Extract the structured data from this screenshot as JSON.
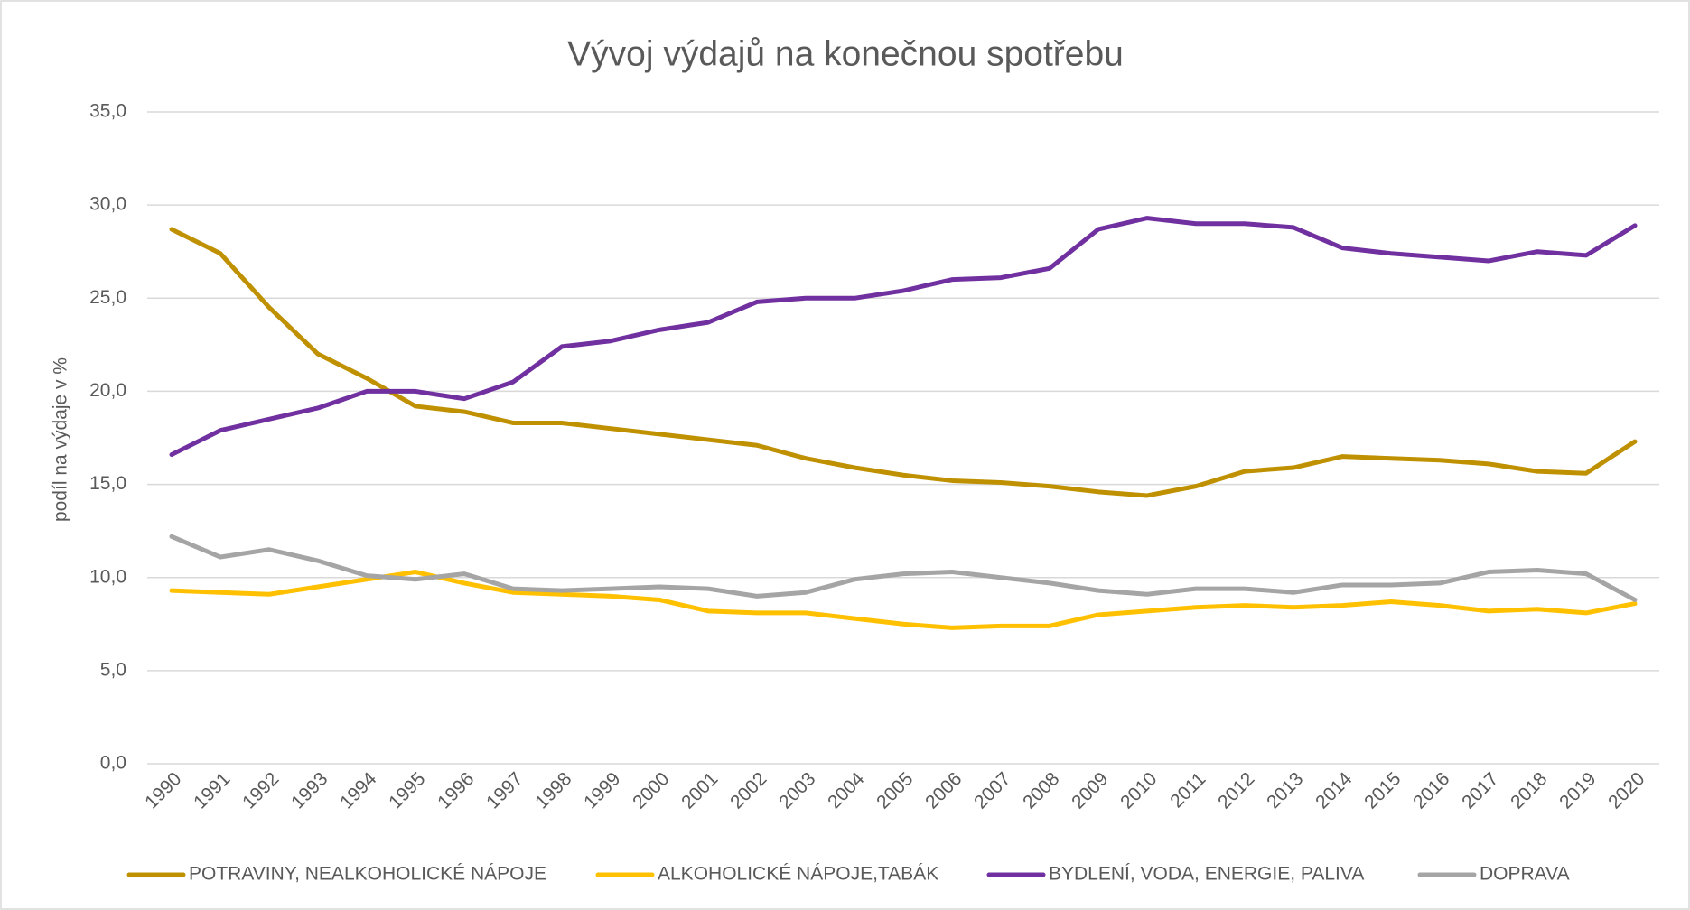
{
  "chart_data": {
    "type": "line",
    "title": "Vývoj výdajů na konečnou spotřebu",
    "y_label": "podíl na výdaje v %",
    "categories": [
      "1990",
      "1991",
      "1992",
      "1993",
      "1994",
      "1995",
      "1996",
      "1997",
      "1998",
      "1999",
      "2000",
      "2001",
      "2002",
      "2003",
      "2004",
      "2005",
      "2006",
      "2007",
      "2008",
      "2009",
      "2010",
      "2011",
      "2012",
      "2013",
      "2014",
      "2015",
      "2016",
      "2017",
      "2018",
      "2019",
      "2020"
    ],
    "series": [
      {
        "name": "POTRAVINY, NEALKOHOLICKÉ NÁPOJE",
        "color": "#bf9000",
        "values": [
          28.7,
          27.4,
          24.5,
          22.0,
          20.7,
          19.2,
          18.9,
          18.3,
          18.3,
          18.0,
          17.7,
          17.4,
          17.1,
          16.4,
          15.9,
          15.5,
          15.2,
          15.1,
          14.9,
          14.6,
          14.4,
          14.9,
          15.7,
          15.9,
          16.5,
          16.4,
          16.3,
          16.1,
          15.7,
          15.6,
          17.3
        ]
      },
      {
        "name": "ALKOHOLICKÉ NÁPOJE,TABÁK",
        "color": "#ffc000",
        "values": [
          9.3,
          9.2,
          9.1,
          9.5,
          9.9,
          10.3,
          9.7,
          9.2,
          9.1,
          9.0,
          8.8,
          8.2,
          8.1,
          8.1,
          7.8,
          7.5,
          7.3,
          7.4,
          7.4,
          8.0,
          8.2,
          8.4,
          8.5,
          8.4,
          8.5,
          8.7,
          8.5,
          8.2,
          8.3,
          8.1,
          8.6
        ]
      },
      {
        "name": "BYDLENÍ, VODA, ENERGIE, PALIVA",
        "color": "#7030a0",
        "values": [
          16.6,
          17.9,
          18.5,
          19.1,
          20.0,
          20.0,
          19.6,
          20.5,
          22.4,
          22.7,
          23.3,
          23.7,
          24.8,
          25.0,
          25.0,
          25.4,
          26.0,
          26.1,
          26.6,
          28.7,
          29.3,
          29.0,
          29.0,
          28.8,
          27.7,
          27.4,
          27.2,
          27.0,
          27.5,
          27.3,
          28.9
        ]
      },
      {
        "name": "DOPRAVA",
        "color": "#a5a5a5",
        "values": [
          12.2,
          11.1,
          11.5,
          10.9,
          10.1,
          9.9,
          10.2,
          9.4,
          9.3,
          9.4,
          9.5,
          9.4,
          9.0,
          9.2,
          9.9,
          10.2,
          10.3,
          10.0,
          9.7,
          9.3,
          9.1,
          9.4,
          9.4,
          9.2,
          9.6,
          9.6,
          9.7,
          10.3,
          10.4,
          10.2,
          8.8
        ]
      }
    ],
    "ylim": [
      0,
      35
    ],
    "yticks": [
      {
        "value": 0,
        "label": "0,0"
      },
      {
        "value": 5,
        "label": "5,0"
      },
      {
        "value": 10,
        "label": "10,0"
      },
      {
        "value": 15,
        "label": "15,0"
      },
      {
        "value": 20,
        "label": "20,0"
      },
      {
        "value": 25,
        "label": "25,0"
      },
      {
        "value": 30,
        "label": "30,0"
      },
      {
        "value": 35,
        "label": "35,0"
      }
    ],
    "grid": true,
    "legend": "bottom"
  }
}
